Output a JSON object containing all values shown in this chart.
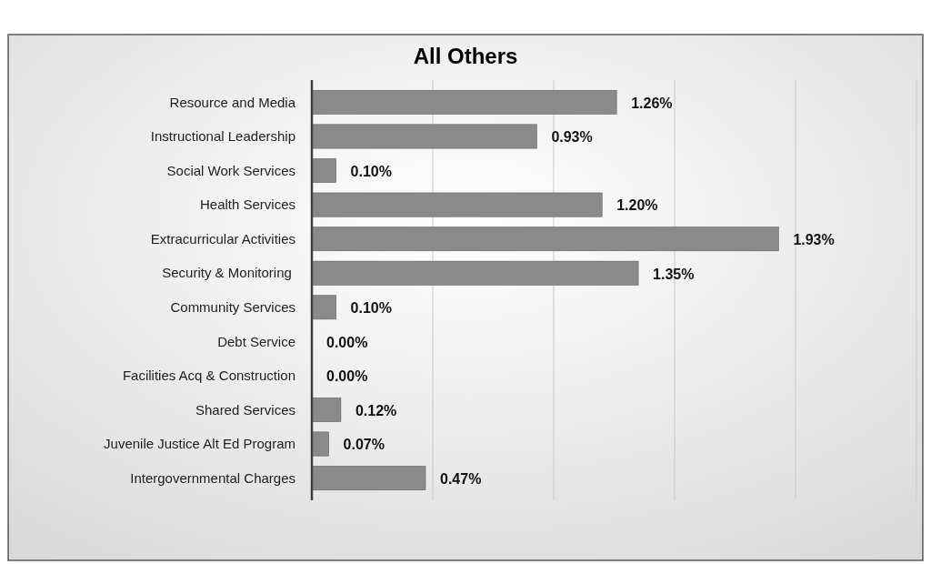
{
  "chart_data": {
    "type": "bar",
    "orientation": "horizontal",
    "title": "All Others",
    "categories": [
      "Resource and Media",
      "Instructional Leadership",
      "Social Work Services",
      "Health Services",
      "Extracurricular Activities",
      "Security & Monitoring ",
      "Community Services",
      "Debt Service",
      "Facilities Acq & Construction",
      "Shared Services",
      "Juvenile Justice Alt Ed Program",
      "Intergovernmental Charges"
    ],
    "values": [
      1.26,
      0.93,
      0.1,
      1.2,
      1.93,
      1.35,
      0.1,
      0.0,
      0.0,
      0.12,
      0.07,
      0.47
    ],
    "value_labels": [
      "1.26%",
      "0.93%",
      "0.10%",
      "1.20%",
      "1.93%",
      "1.35%",
      "0.10%",
      "0.00%",
      "0.00%",
      "0.12%",
      "0.07%",
      "0.47%"
    ],
    "color": "#8a8a8a",
    "xlim": [
      0,
      2.5
    ],
    "xticks": [
      {
        "value": 0,
        "label": null
      },
      {
        "value": 0.5,
        "label": null
      },
      {
        "value": 1,
        "label": null
      },
      {
        "value": 1.5,
        "label": null
      },
      {
        "value": 2,
        "label": null
      },
      {
        "value": 2.5,
        "label": null
      }
    ],
    "tick_labels": "y",
    "grid": "x"
  }
}
